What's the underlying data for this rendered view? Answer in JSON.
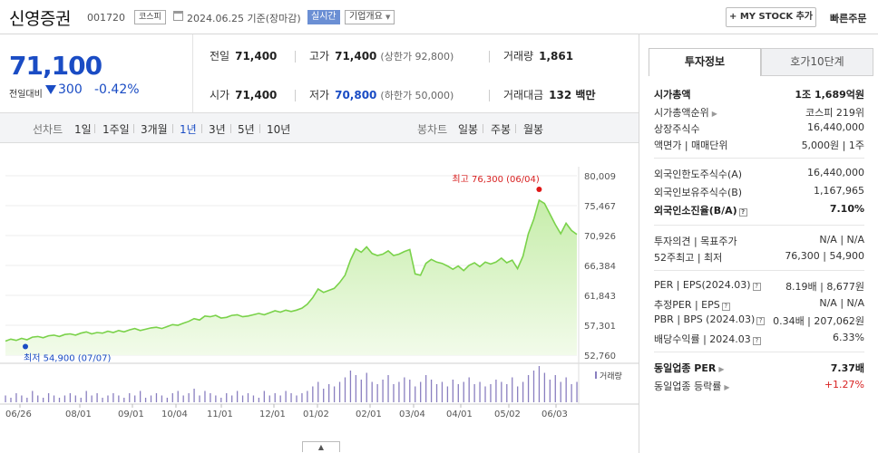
{
  "header": {
    "name": "신영증권",
    "code": "001720",
    "market": "코스피",
    "date": "2024.06.25 기준(장마감)",
    "realtime": "실시간",
    "overview": "기업개요",
    "my_stock": "+ MY STOCK 추가",
    "quick_order": "빠른주문"
  },
  "price": {
    "current": "71,100",
    "change_label": "전일대비",
    "change": "300",
    "change_pct": "-0.42%",
    "direction": "down",
    "color": "#1a4cc4"
  },
  "stats": {
    "prev_label": "전일",
    "prev": "71,400",
    "open_label": "시가",
    "open": "71,400",
    "high_label": "고가",
    "high": "71,400",
    "high_sub": "(상한가 92,800)",
    "low_label": "저가",
    "low": "70,800",
    "low_sub": "(하한가 50,000)",
    "volume_label": "거래량",
    "volume": "1,861",
    "amount_label": "거래대금",
    "amount": "132 백만"
  },
  "periods": {
    "line_label": "선차트",
    "items": [
      "1일",
      "1주일",
      "3개월",
      "1년",
      "3년",
      "5년",
      "10년"
    ],
    "active": "1년",
    "candle_label": "봉차트",
    "candle_items": [
      "일봉",
      "주봉",
      "월봉"
    ]
  },
  "chart_data": {
    "type": "area",
    "y_ticks": [
      "80,009",
      "75,467",
      "70,926",
      "66,384",
      "61,843",
      "57,301",
      "52,760"
    ],
    "ylim": [
      52760,
      80009
    ],
    "x_ticks": [
      "06/26",
      "08/01",
      "09/01",
      "10/04",
      "11/01",
      "12/01",
      "01/02",
      "02/01",
      "03/04",
      "04/01",
      "05/02",
      "06/03"
    ],
    "high_label": "최고 76,300 (06/04)",
    "low_label": "최저 54,900 (07/07)",
    "volume_label": "거래량",
    "line_color": "#7ad24a",
    "fill_color": "#dff4cc",
    "values": [
      54900,
      55200,
      55000,
      55300,
      55100,
      55500,
      55600,
      55400,
      55700,
      55800,
      55600,
      55900,
      56000,
      55800,
      56100,
      56300,
      56000,
      56200,
      56100,
      56400,
      56200,
      56500,
      56300,
      56600,
      56800,
      56500,
      56700,
      56900,
      57000,
      56800,
      57100,
      57400,
      57300,
      57600,
      57900,
      58300,
      58100,
      58700,
      58600,
      58800,
      58400,
      58500,
      58800,
      58900,
      58600,
      58700,
      58900,
      59100,
      58900,
      59200,
      59500,
      59300,
      59600,
      59400,
      59600,
      59900,
      60500,
      61500,
      62800,
      62300,
      62600,
      62900,
      63800,
      64900,
      67200,
      68900,
      68400,
      69200,
      68200,
      67900,
      68100,
      68600,
      67900,
      68100,
      68500,
      68800,
      65100,
      64900,
      66700,
      67300,
      66900,
      66700,
      66300,
      65800,
      66300,
      65600,
      66400,
      66800,
      66200,
      66900,
      66600,
      66900,
      67500,
      66800,
      67200,
      65900,
      67800,
      71200,
      73400,
      76300,
      75800,
      74200,
      72600,
      71200,
      72800,
      71700,
      71100
    ],
    "volume": [
      3,
      2,
      4,
      3,
      2,
      5,
      3,
      2,
      4,
      3,
      2,
      3,
      4,
      3,
      2,
      5,
      3,
      4,
      2,
      3,
      4,
      3,
      2,
      4,
      3,
      5,
      2,
      3,
      4,
      3,
      2,
      4,
      5,
      3,
      4,
      6,
      3,
      5,
      4,
      3,
      2,
      4,
      3,
      5,
      3,
      4,
      3,
      2,
      5,
      3,
      4,
      3,
      5,
      4,
      3,
      4,
      5,
      7,
      9,
      6,
      8,
      7,
      9,
      11,
      14,
      12,
      10,
      13,
      9,
      8,
      10,
      12,
      8,
      9,
      11,
      10,
      7,
      9,
      12,
      10,
      8,
      9,
      7,
      10,
      8,
      9,
      11,
      8,
      9,
      7,
      8,
      10,
      9,
      8,
      11,
      7,
      9,
      12,
      14,
      16,
      13,
      10,
      12,
      9,
      11,
      8,
      9
    ]
  },
  "right": {
    "tabs": [
      "투자정보",
      "호가10단계"
    ],
    "rows": [
      {
        "k": "시가총액",
        "v": "1조 1,689억원",
        "bold": true
      },
      {
        "k": "시가총액순위",
        "v": "코스피 219위",
        "arrow": true
      },
      {
        "k": "상장주식수",
        "v": "16,440,000"
      },
      {
        "k": "액면가 | 매매단위",
        "v": "5,000원 | 1주"
      },
      {
        "k": "외국인한도주식수(A)",
        "v": "16,440,000"
      },
      {
        "k": "외국인보유주식수(B)",
        "v": "1,167,965"
      },
      {
        "k": "외국인소진율(B/A)",
        "v": "7.10%",
        "bold": true,
        "mini": true
      },
      {
        "k": "투자의견 | 목표주가",
        "v": "N/A | N/A"
      },
      {
        "k": "52주최고 | 최저",
        "v": "76,300 | 54,900"
      },
      {
        "k": "PER | EPS(2024.03)",
        "v": "8.19배 | 8,677원",
        "mini": true
      },
      {
        "k": "추정PER | EPS",
        "v": "N/A | N/A",
        "mini": true
      },
      {
        "k": "PBR | BPS (2024.03)",
        "v": "0.34배 | 207,062원",
        "mini": true
      },
      {
        "k": "배당수익률 | 2024.03",
        "v": "6.33%",
        "mini": true
      },
      {
        "k": "동일업종 PER",
        "v": "7.37배",
        "bold": true,
        "arrow": true
      },
      {
        "k": "동일업종 등락률",
        "v": "+1.27%",
        "arrow": true,
        "red": true
      }
    ]
  }
}
